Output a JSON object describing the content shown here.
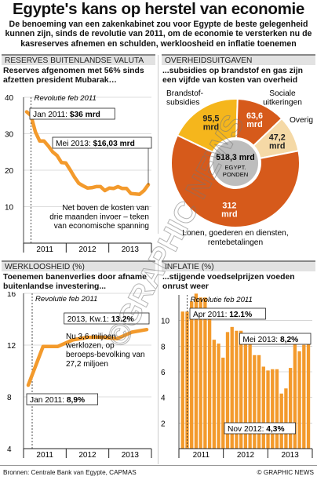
{
  "title": "Egypte's kans op herstel van economie",
  "intro": "De benoeming van een zakenkabinet zou voor Egypte de beste gelegenheid kunnen zijn, sinds de revolutie van 2011, om de economie te versterken nu de kasreserves afnemen en schulden, werkloosheid en inflatie toenemen",
  "watermark": "©GRAPHIC NEWS",
  "footer": {
    "sources": "Bronnen: Centrale Bank van Egypte, CAPMAS",
    "copyright": "© GRAPHIC NEWS"
  },
  "colors": {
    "orange": "#f39a2c",
    "dark_orange": "#d65a1b",
    "yellow": "#f5b61c",
    "beige": "#f5d9a6",
    "panel_gray": "#e2e2e2"
  },
  "panels": {
    "reserves": {
      "header": "RESERVES BUITENLANDSE VALUTA",
      "subtitle": "Reserves afgenomen met 56% sinds afzetten president Mubarak…",
      "revolution_label": "Revolutie feb 2011",
      "callout_start": "Jan 2011: $36 mrd",
      "callout_end": "Mei 2013: $16,03 mrd",
      "note": "Net boven de kosten van drie maanden invoer – teken van economische spanning"
    },
    "spending": {
      "header": "OVERHEIDSUITGAVEN",
      "subtitle": "...subsidies op brandstof en gas zijn een vijfde van kosten van overheid",
      "center_value": "518,3 mrd",
      "center_label": "EGYPT. PONDEN",
      "labels": {
        "fuel": "Brandstof-subsidies",
        "social": "Sociale uitkeringen",
        "other": "Overig",
        "wages": "Lonen, goederen en diensten, rentebetalingen"
      }
    },
    "unemployment": {
      "header": "WERKLOOSHEID (%)",
      "subtitle": "Toenemen banenverlies door afname buitenlandse investering...",
      "revolution_label": "Revolutie feb 2011",
      "callout_end": "2013, Kw.1: 13.2%",
      "callout_start": "Jan 2011: 8,9%",
      "note": "Nu 3,6 miljoen werklozen, op beroeps-bevolking van 27,2 miljoen"
    },
    "inflation": {
      "header": "INFLATIE (%)",
      "subtitle": "...stijgende voedselprijzen voeden onrust weer",
      "revolution_label": "Revolutie feb 2011",
      "callout_peak": "Apr 2011: 12.1%",
      "callout_low": "Nov 2012: 4,3%",
      "callout_end": "Mei 2013: 8,2%"
    }
  },
  "chart_data": [
    {
      "type": "line",
      "title": "RESERVES BUITENLANDSE VALUTA",
      "x_ticks": [
        "2011",
        "2012",
        "2013"
      ],
      "ylim": [
        0,
        40
      ],
      "y_ticks": [
        "10",
        "20",
        "30",
        "40"
      ],
      "ylabel": "",
      "series": [
        {
          "x": [
            "2011-01",
            "2011-02",
            "2011-03",
            "2011-04",
            "2011-05",
            "2011-06",
            "2011-07",
            "2011-08",
            "2011-09",
            "2011-10",
            "2011-11",
            "2011-12",
            "2012-01",
            "2012-02",
            "2012-03",
            "2012-04",
            "2012-05",
            "2012-06",
            "2012-07",
            "2012-08",
            "2012-09",
            "2012-10",
            "2012-11",
            "2012-12",
            "2013-01",
            "2013-02",
            "2013-03",
            "2013-04",
            "2013-05"
          ],
          "values": [
            36.0,
            35.0,
            30.5,
            28.0,
            28.0,
            26.6,
            25.0,
            24.0,
            22.1,
            22.0,
            20.1,
            18.1,
            16.4,
            15.7,
            15.1,
            15.2,
            15.5,
            15.5,
            14.4,
            15.1,
            15.0,
            15.5,
            15.0,
            15.0,
            13.6,
            13.5,
            13.4,
            14.4,
            16.03
          ]
        }
      ]
    },
    {
      "type": "pie",
      "title": "OVERHEIDSUITGAVEN",
      "total": 518.3,
      "slices": [
        {
          "label": "Lonen, goederen en diensten, rentebetalingen",
          "value": 312,
          "value_label": "312 mrd",
          "color": "#d65a1b"
        },
        {
          "label": "Brandstof-subsidies",
          "value": 95.5,
          "value_label": "95,5 mrd",
          "color": "#f5b61c"
        },
        {
          "label": "Sociale uitkeringen",
          "value": 63.6,
          "value_label": "63,6 mrd",
          "color": "#d65a1b"
        },
        {
          "label": "Overig",
          "value": 47.2,
          "value_label": "47,2 mrd",
          "color": "#f5d9a6"
        }
      ]
    },
    {
      "type": "line",
      "title": "WERKLOOSHEID (%)",
      "x_ticks": [
        "2011",
        "2012",
        "2013"
      ],
      "ylim": [
        4,
        16
      ],
      "y_ticks": [
        "4",
        "8",
        "12",
        "16"
      ],
      "series": [
        {
          "x": [
            "2011-Q1",
            "2011-Q2",
            "2011-Q3",
            "2011-Q4",
            "2012-Q1",
            "2012-Q2",
            "2012-Q3",
            "2012-Q4",
            "2013-Q1"
          ],
          "values": [
            8.9,
            11.9,
            11.9,
            12.4,
            12.6,
            12.6,
            12.5,
            13.0,
            13.2
          ]
        }
      ]
    },
    {
      "type": "bar",
      "title": "INFLATIE (%)",
      "x_ticks": [
        "2011",
        "2012",
        "2013"
      ],
      "ylim": [
        0,
        12
      ],
      "y_ticks": [
        "2",
        "4",
        "6",
        "8",
        "10"
      ],
      "categories": [
        "2011-01",
        "2011-02",
        "2011-03",
        "2011-04",
        "2011-05",
        "2011-06",
        "2011-07",
        "2011-08",
        "2011-09",
        "2011-10",
        "2011-11",
        "2011-12",
        "2012-01",
        "2012-02",
        "2012-03",
        "2012-04",
        "2012-05",
        "2012-06",
        "2012-07",
        "2012-08",
        "2012-09",
        "2012-10",
        "2012-11",
        "2012-12",
        "2013-01",
        "2013-02",
        "2013-03",
        "2013-04",
        "2013-05"
      ],
      "values": [
        10.7,
        10.7,
        11.5,
        12.1,
        11.8,
        11.8,
        10.4,
        8.5,
        8.2,
        7.1,
        9.1,
        9.5,
        9.2,
        9.2,
        9.0,
        8.8,
        7.3,
        7.3,
        6.4,
        6.1,
        6.2,
        6.2,
        4.3,
        4.7,
        6.3,
        8.2,
        7.6,
        8.1,
        8.2
      ]
    }
  ]
}
